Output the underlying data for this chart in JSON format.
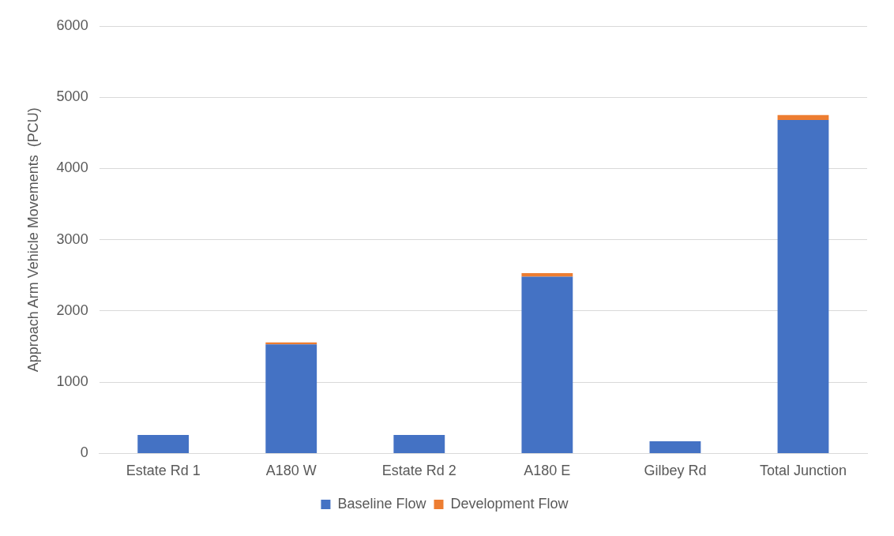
{
  "chart_data": {
    "type": "bar",
    "stacked": true,
    "ylabel": "Approach Arm Vehicle Movements  (PCU)",
    "categories": [
      "Estate Rd 1",
      "A180 W",
      "Estate Rd 2",
      "A180 E",
      "Gilbey Rd",
      "Total Junction"
    ],
    "series": [
      {
        "name": "Baseline Flow",
        "color": "#4472c4",
        "values": [
          260,
          1530,
          260,
          2480,
          170,
          4680
        ]
      },
      {
        "name": "Development Flow",
        "color": "#ed7d31",
        "values": [
          0,
          30,
          0,
          50,
          0,
          70
        ]
      }
    ],
    "ylim": [
      0,
      6000
    ],
    "yticks": [
      0,
      1000,
      2000,
      3000,
      4000,
      5000,
      6000
    ],
    "grid": "y",
    "legend": "bottom"
  }
}
